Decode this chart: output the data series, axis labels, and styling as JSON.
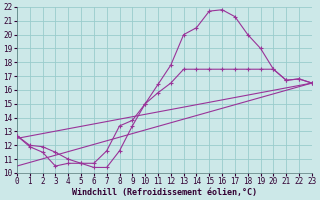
{
  "xlabel": "Windchill (Refroidissement éolien,°C)",
  "bg_color": "#cce8e8",
  "line_color": "#993399",
  "grid_color": "#99cccc",
  "line1_x": [
    0,
    1,
    2,
    3,
    4,
    5,
    6,
    7,
    8,
    9,
    10,
    11,
    12,
    13,
    14,
    15,
    16,
    17,
    18,
    19,
    20,
    21,
    22,
    23
  ],
  "line1_y": [
    12.7,
    11.9,
    11.5,
    10.5,
    10.7,
    10.7,
    10.4,
    10.4,
    11.6,
    13.4,
    15.0,
    16.4,
    17.8,
    20.0,
    20.5,
    21.7,
    21.8,
    21.3,
    20.0,
    19.0,
    17.5,
    16.7,
    16.8,
    16.5
  ],
  "line2_x": [
    0,
    1,
    2,
    3,
    4,
    5,
    6,
    7,
    8,
    9,
    10,
    11,
    12,
    13,
    14,
    15,
    16,
    17,
    18,
    19,
    20,
    21,
    22,
    23
  ],
  "line2_y": [
    12.7,
    12.0,
    11.9,
    11.5,
    11.0,
    10.7,
    10.7,
    11.6,
    13.4,
    13.8,
    15.0,
    15.8,
    16.5,
    17.5,
    17.5,
    17.5,
    17.5,
    17.5,
    17.5,
    17.5,
    17.5,
    16.7,
    16.8,
    16.5
  ],
  "line3_x": [
    0,
    23
  ],
  "line3_y": [
    12.5,
    16.5
  ],
  "line4_x": [
    0,
    23
  ],
  "line4_y": [
    10.5,
    16.5
  ],
  "xlim": [
    0,
    23
  ],
  "ylim": [
    10,
    22
  ],
  "xticks": [
    0,
    1,
    2,
    3,
    4,
    5,
    6,
    7,
    8,
    9,
    10,
    11,
    12,
    13,
    14,
    15,
    16,
    17,
    18,
    19,
    20,
    21,
    22,
    23
  ],
  "yticks": [
    10,
    11,
    12,
    13,
    14,
    15,
    16,
    17,
    18,
    19,
    20,
    21,
    22
  ],
  "xlabel_fontsize": 6.0,
  "tick_fontsize": 5.5
}
